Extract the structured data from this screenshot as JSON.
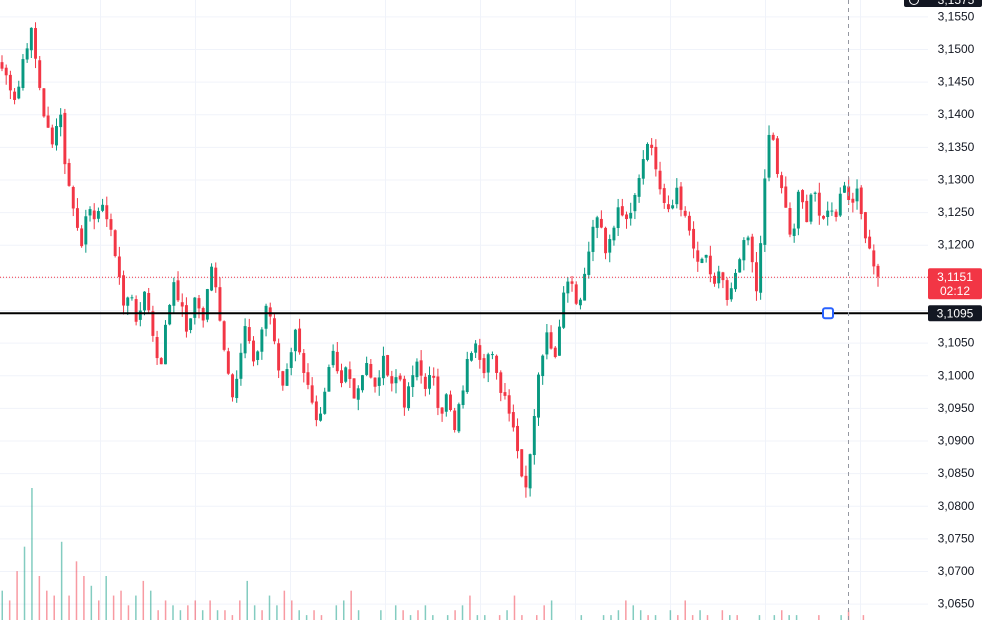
{
  "chart_data": {
    "type": "candlestick",
    "title": "",
    "xlabel": "",
    "ylabel": "",
    "ylim": [
      3.0625,
      3.1575
    ],
    "y_ticks": [
      "3,0650",
      "3,0700",
      "3,0750",
      "3,0800",
      "3,0850",
      "3,0900",
      "3,0950",
      "3,1000",
      "3,1050",
      "3,1100",
      "3,1150",
      "3,1200",
      "3,1250",
      "3,1300",
      "3,1350",
      "3,1400",
      "3,1450",
      "3,1500",
      "3,1550"
    ],
    "top_partial_label": "3,1575",
    "grid": true,
    "price_points": [
      3.147,
      3.145,
      3.142,
      3.149,
      3.153,
      3.146,
      3.139,
      3.135,
      3.142,
      3.13,
      3.126,
      3.119,
      3.128,
      3.122,
      3.127,
      3.122,
      3.118,
      3.11,
      3.113,
      3.107,
      3.114,
      3.106,
      3.101,
      3.109,
      3.115,
      3.11,
      3.106,
      3.113,
      3.108,
      3.117,
      3.112,
      3.104,
      3.097,
      3.102,
      3.108,
      3.101,
      3.106,
      3.112,
      3.104,
      3.098,
      3.103,
      3.107,
      3.101,
      3.096,
      3.091,
      3.097,
      3.104,
      3.099,
      3.102,
      3.097,
      3.099,
      3.102,
      3.097,
      3.104,
      3.098,
      3.101,
      3.095,
      3.099,
      3.103,
      3.097,
      3.101,
      3.094,
      3.097,
      3.091,
      3.097,
      3.103,
      3.106,
      3.101,
      3.104,
      3.099,
      3.097,
      3.094,
      3.087,
      3.083,
      3.093,
      3.102,
      3.108,
      3.102,
      3.112,
      3.116,
      3.111,
      3.114,
      3.121,
      3.125,
      3.118,
      3.122,
      3.127,
      3.123,
      3.128,
      3.132,
      3.137,
      3.132,
      3.127,
      3.124,
      3.129,
      3.124,
      3.121,
      3.116,
      3.119,
      3.112,
      3.117,
      3.111,
      3.114,
      3.119,
      3.121,
      3.112,
      3.126,
      3.139,
      3.131,
      3.126,
      3.12,
      3.128,
      3.124,
      3.13,
      3.122,
      3.126,
      3.124,
      3.13,
      3.127,
      3.128,
      3.123,
      3.119,
      3.1151
    ],
    "volume_values": [
      6,
      4,
      10,
      15,
      27,
      9,
      6,
      5,
      16,
      5,
      12,
      9,
      7,
      4,
      9,
      5,
      6,
      3,
      5,
      8,
      6,
      2,
      4,
      3,
      2,
      3,
      4,
      2,
      4,
      2,
      2,
      1,
      4,
      8,
      3,
      2,
      5,
      3,
      6,
      4,
      2,
      1,
      2,
      1,
      0,
      3,
      4,
      6,
      2,
      0,
      0,
      2,
      0,
      3,
      2,
      1,
      2,
      3,
      1,
      0,
      1,
      2,
      3,
      5,
      1,
      1,
      0,
      1,
      2,
      5,
      1,
      0,
      1,
      3,
      4,
      0,
      0,
      0,
      1,
      0,
      0,
      1,
      1,
      2,
      4,
      3,
      2,
      1,
      1,
      0,
      2,
      1,
      4,
      1,
      2,
      1,
      0,
      2,
      1,
      1,
      0,
      0,
      1,
      0,
      1,
      2,
      1,
      1,
      0,
      0,
      1,
      0,
      0,
      1,
      2,
      0,
      1,
      0,
      0
    ],
    "up_color": "#089981",
    "down_color": "#f23645",
    "horizontal_line": {
      "value": 3.1095,
      "label": "3,1095",
      "color": "#000000"
    },
    "current_price": {
      "value": 3.1151,
      "label": "3,1151",
      "countdown": "02:12",
      "color": "#f23645"
    },
    "crosshair_vertical": true,
    "axis_position": "right"
  }
}
